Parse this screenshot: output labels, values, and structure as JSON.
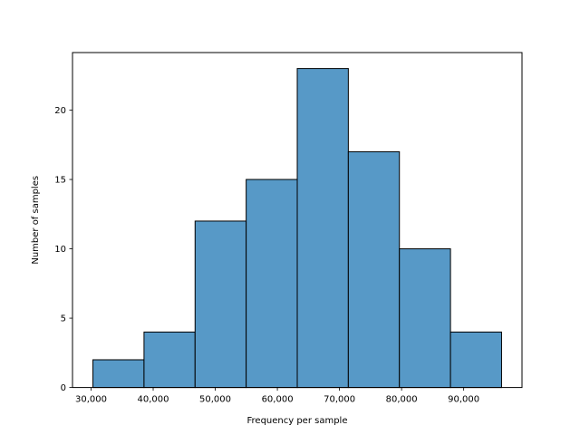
{
  "chart_data": {
    "type": "bar",
    "title": "",
    "xlabel": "Frequency per sample",
    "ylabel": "Number of samples",
    "bin_edges": [
      30300,
      38525,
      46750,
      54975,
      63200,
      71425,
      79650,
      87875,
      96100
    ],
    "values": [
      2,
      4,
      12,
      15,
      23,
      17,
      10,
      4
    ],
    "xlim": [
      27010,
      99390
    ],
    "ylim": [
      0,
      24.15
    ],
    "xticks": [
      30000,
      40000,
      50000,
      60000,
      70000,
      80000,
      90000
    ],
    "xtick_labels": [
      "30,000",
      "40,000",
      "50,000",
      "60,000",
      "70,000",
      "80,000",
      "90,000"
    ],
    "yticks": [
      0,
      5,
      10,
      15,
      20
    ],
    "ytick_labels": [
      "0",
      "5",
      "10",
      "15",
      "20"
    ],
    "bar_color": "#5799c7",
    "edge_color": "#000000",
    "grid": false,
    "legend": "none"
  }
}
